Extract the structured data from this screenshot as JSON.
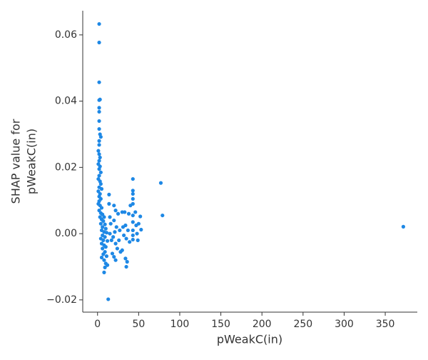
{
  "chart_data": {
    "type": "scatter",
    "xlabel": "pWeakC(in)",
    "ylabel_lines": [
      "SHAP value for",
      "pWeakC(in)"
    ],
    "color": "#1e88e5",
    "xlim": [
      -18,
      389
    ],
    "ylim": [
      -0.0237,
      0.0673
    ],
    "xticks": [
      0,
      50,
      100,
      150,
      200,
      250,
      300,
      350
    ],
    "yticks": [
      {
        "value": -0.02,
        "label": "−0.02"
      },
      {
        "value": 0,
        "label": "0.00"
      },
      0.02,
      0.04,
      0.06
    ],
    "x": [
      2,
      2,
      2,
      2,
      3,
      2,
      2,
      2,
      2,
      3,
      4,
      2,
      2,
      1,
      2,
      3,
      2,
      1,
      3,
      2,
      4,
      2,
      1,
      3,
      4,
      2,
      5,
      1,
      3,
      2,
      4,
      2,
      1,
      3,
      5,
      2,
      4,
      6,
      3,
      8,
      5,
      7,
      4,
      9,
      6,
      10,
      5,
      8,
      11,
      6,
      9,
      4,
      7,
      12,
      5,
      8,
      10,
      6,
      9,
      7,
      11,
      5,
      8,
      10,
      12,
      9,
      8,
      13,
      14,
      14,
      15,
      16,
      15,
      17,
      18,
      20,
      22,
      20,
      23,
      21,
      19,
      22,
      24,
      20,
      22,
      25,
      27,
      26,
      28,
      30,
      31,
      32,
      30,
      33,
      34,
      35,
      34,
      35,
      36,
      38,
      37,
      39,
      40,
      43,
      43,
      43,
      43,
      43,
      43,
      43,
      43,
      43,
      43,
      46,
      47,
      48,
      49,
      50,
      52,
      53,
      77,
      79,
      372
    ],
    "values": [
      0.0633,
      0.0577,
      0.0457,
      0.0403,
      0.0405,
      0.038,
      0.0368,
      0.034,
      0.0316,
      0.03,
      0.0292,
      0.028,
      0.0268,
      0.025,
      0.024,
      0.023,
      0.022,
      0.021,
      0.0203,
      0.0195,
      0.0185,
      0.0175,
      0.0165,
      0.0158,
      0.015,
      0.014,
      0.0135,
      0.0128,
      0.012,
      0.0112,
      0.0105,
      0.0098,
      0.009,
      0.0085,
      0.0078,
      0.007,
      0.0062,
      0.0058,
      0.005,
      0.005,
      0.0043,
      0.0038,
      0.003,
      0.0028,
      0.002,
      0.0015,
      0.001,
      0.0005,
      0.0003,
      -0.0005,
      -0.001,
      -0.0015,
      -0.002,
      -0.0022,
      -0.003,
      -0.0035,
      -0.004,
      -0.0045,
      -0.0055,
      -0.0062,
      -0.0068,
      -0.0072,
      -0.008,
      -0.009,
      -0.0095,
      -0.0102,
      -0.0117,
      -0.0198,
      0.0118,
      0.009,
      0.005,
      0.003,
      0,
      -0.002,
      -0.006,
      0.0085,
      0.007,
      0.004,
      0.002,
      0.0005,
      -0.001,
      -0.003,
      -0.0045,
      -0.007,
      -0.008,
      0.006,
      0.001,
      -0.002,
      -0.0055,
      0.0065,
      0.002,
      -0.0005,
      -0.005,
      0.0065,
      0.0025,
      -0.0015,
      -0.0075,
      -0.01,
      -0.0085,
      0.006,
      0.001,
      -0.0025,
      0.0085,
      0.0165,
      0.013,
      0.012,
      0.0105,
      0.009,
      0.0055,
      0.0035,
      0.001,
      -0.0005,
      -0.0018,
      0.0065,
      0.0025,
      0,
      -0.002,
      0.003,
      0.0052,
      0.0012,
      0.0153,
      0.0055,
      0.0021
    ]
  }
}
